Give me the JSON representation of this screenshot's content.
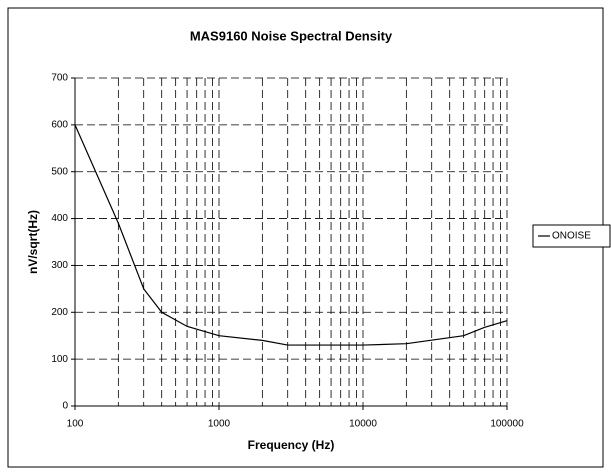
{
  "chart_data": {
    "type": "line",
    "title": "MAS9160 Noise Spectral Density",
    "x_label": "Frequency (Hz)",
    "y_label": "nV/sqrt(Hz)",
    "x": [
      100,
      200,
      300,
      400,
      600,
      1000,
      2000,
      3000,
      10000,
      20000,
      50000,
      70000,
      100000
    ],
    "series": [
      {
        "name": "ONOISE",
        "color": "#000000",
        "values": [
          600,
          390,
          250,
          200,
          170,
          150,
          140,
          130,
          130,
          133,
          150,
          168,
          182
        ]
      }
    ],
    "xlim": [
      100,
      100000
    ],
    "xticks": [
      100,
      1000,
      10000,
      100000
    ],
    "xminorticks": [
      200,
      300,
      400,
      500,
      600,
      700,
      800,
      900,
      2000,
      3000,
      4000,
      5000,
      6000,
      7000,
      8000,
      9000,
      20000,
      30000,
      40000,
      50000,
      60000,
      70000,
      80000,
      90000
    ],
    "xlog": true,
    "ylim": [
      0,
      700
    ],
    "yticks": [
      0,
      100,
      200,
      300,
      400,
      500,
      600,
      700
    ],
    "grid": true,
    "legend": "right"
  }
}
